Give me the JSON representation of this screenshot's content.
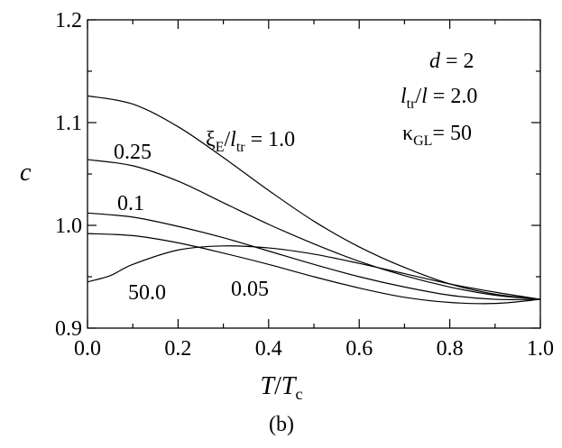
{
  "chart_data": {
    "type": "line",
    "xlabel": "T/Tc",
    "ylabel": "c",
    "xlim": [
      0.0,
      1.0
    ],
    "ylim": [
      0.9,
      1.2
    ],
    "x_ticks": [
      "0.0",
      "0.2",
      "0.4",
      "0.6",
      "0.8",
      "1.0"
    ],
    "y_ticks": [
      "0.9",
      "1.0",
      "1.1",
      "1.2"
    ],
    "caption": "(b)",
    "annotations": {
      "d": "d = 2",
      "ltr_ratio": "l_tr/l = 2.0",
      "kappa": "κ_GL= 50",
      "series_param": "ξ_E/l_tr = 1.0"
    },
    "series": [
      {
        "name": "1.0",
        "x": [
          0.0,
          0.1,
          0.2,
          0.3,
          0.4,
          0.5,
          0.6,
          0.7,
          0.8,
          0.9,
          1.0
        ],
        "y": [
          1.126,
          1.118,
          1.096,
          1.066,
          1.034,
          1.004,
          0.979,
          0.959,
          0.943,
          0.933,
          0.928
        ]
      },
      {
        "name": "0.25",
        "x": [
          0.0,
          0.1,
          0.2,
          0.3,
          0.4,
          0.5,
          0.6,
          0.7,
          0.8,
          0.9,
          1.0
        ],
        "y": [
          1.064,
          1.058,
          1.043,
          1.022,
          1.001,
          0.982,
          0.965,
          0.951,
          0.94,
          0.932,
          0.928
        ]
      },
      {
        "name": "0.1",
        "x": [
          0.0,
          0.1,
          0.2,
          0.3,
          0.4,
          0.5,
          0.6,
          0.7,
          0.8,
          0.9,
          1.0
        ],
        "y": [
          1.012,
          1.008,
          0.999,
          0.988,
          0.975,
          0.962,
          0.95,
          0.94,
          0.932,
          0.928,
          0.928
        ]
      },
      {
        "name": "0.05",
        "x": [
          0.0,
          0.1,
          0.2,
          0.3,
          0.4,
          0.5,
          0.6,
          0.7,
          0.8,
          0.9,
          1.0
        ],
        "y": [
          0.992,
          0.99,
          0.983,
          0.973,
          0.962,
          0.95,
          0.939,
          0.93,
          0.925,
          0.924,
          0.928
        ]
      },
      {
        "name": "50.0",
        "x": [
          0.0,
          0.05,
          0.1,
          0.2,
          0.3,
          0.4,
          0.5,
          0.6,
          0.7,
          0.8,
          0.9,
          1.0
        ],
        "y": [
          0.945,
          0.951,
          0.962,
          0.976,
          0.98,
          0.978,
          0.972,
          0.963,
          0.953,
          0.943,
          0.935,
          0.928
        ]
      }
    ],
    "series_labels": [
      "0.25",
      "0.1",
      "50.0",
      "0.05"
    ]
  }
}
